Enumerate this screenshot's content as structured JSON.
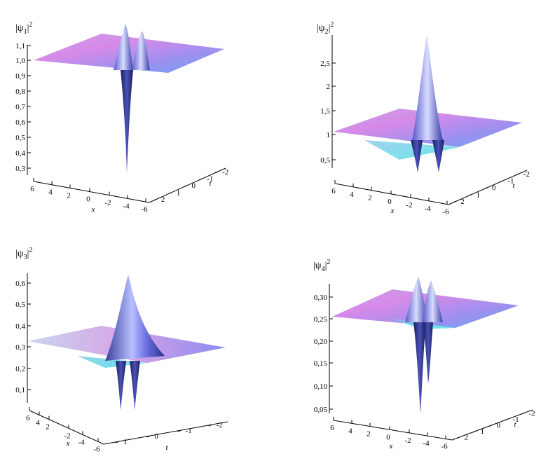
{
  "chart_data": [
    {
      "type": "surface3d",
      "title_base": "|ψ",
      "title_sub": "1",
      "title_tail": "|",
      "title_sup": "2",
      "z_ticks": [
        "0,3",
        "0,4",
        "0,5",
        "0,6",
        "0,7",
        "0,8",
        "0,9",
        "1,0",
        "1,1"
      ],
      "x_ticks": [
        "6",
        "4",
        "2",
        "0",
        "-2",
        "-4",
        "-6"
      ],
      "t_ticks": [
        "2",
        "1",
        "0",
        "-1",
        "-2"
      ],
      "xlabel": "x",
      "tlabel": "t",
      "zlim": [
        0.25,
        1.15
      ],
      "background": 1.0,
      "features": [
        {
          "x": -4,
          "t": 0,
          "z": 0.25
        },
        {
          "x": -4,
          "t": 0,
          "z": 1.08
        }
      ]
    },
    {
      "type": "surface3d",
      "title_base": "|ψ",
      "title_sub": "2",
      "title_tail": "|",
      "title_sup": "2",
      "z_ticks": [
        "0,5",
        "1",
        "1,5",
        "2",
        "2,5"
      ],
      "x_ticks": [
        "6",
        "4",
        "2",
        "0",
        "-2",
        "-4",
        "-6"
      ],
      "t_ticks": [
        "2",
        "1",
        "0",
        "-1",
        "-2"
      ],
      "xlabel": "x",
      "tlabel": "t",
      "zlim": [
        0.3,
        2.9
      ],
      "background": 1.0,
      "features": [
        {
          "x": -4,
          "t": 0,
          "z": 2.9
        },
        {
          "x": -3,
          "t": 0,
          "z": 0.3
        },
        {
          "x": -5,
          "t": 0,
          "z": 0.3
        }
      ]
    },
    {
      "type": "surface3d",
      "title_base": "|ψ",
      "title_sub": "3",
      "title_tail": "|",
      "title_sup": "2",
      "z_ticks": [
        "0,1",
        "0,2",
        "0,3",
        "0,4",
        "0,5",
        "0,6"
      ],
      "x_ticks": [
        "6",
        "4",
        "2",
        "-2",
        "-4",
        "-6"
      ],
      "t_ticks": [
        "1",
        "0",
        "-1",
        "-2"
      ],
      "xlabel": "x",
      "tlabel": "t",
      "zlim": [
        0.05,
        0.63
      ],
      "background": 0.33,
      "features": [
        {
          "x": -4,
          "t": 0,
          "z": 0.63
        },
        {
          "x": -3,
          "t": 0,
          "z": 0.05
        },
        {
          "x": -5,
          "t": 0,
          "z": 0.05
        }
      ]
    },
    {
      "type": "surface3d",
      "title_base": "|ψ",
      "title_sub": "4",
      "title_tail": "|",
      "title_sup": "2",
      "z_ticks": [
        "0,05",
        "0,10",
        "0,15",
        "0,20",
        "0,25",
        "0,30"
      ],
      "x_ticks": [
        "6",
        "4",
        "2",
        "0",
        "-2",
        "-4",
        "-6"
      ],
      "t_ticks": [
        "2",
        "1",
        "0",
        "-1",
        "-2"
      ],
      "xlabel": "x",
      "tlabel": "t",
      "zlim": [
        0.04,
        0.32
      ],
      "background": 0.25,
      "features": [
        {
          "x": -4,
          "t": 0,
          "z": 0.32
        },
        {
          "x": -3,
          "t": 0,
          "z": 0.04
        },
        {
          "x": -5,
          "t": 0,
          "z": 0.04
        }
      ]
    }
  ]
}
